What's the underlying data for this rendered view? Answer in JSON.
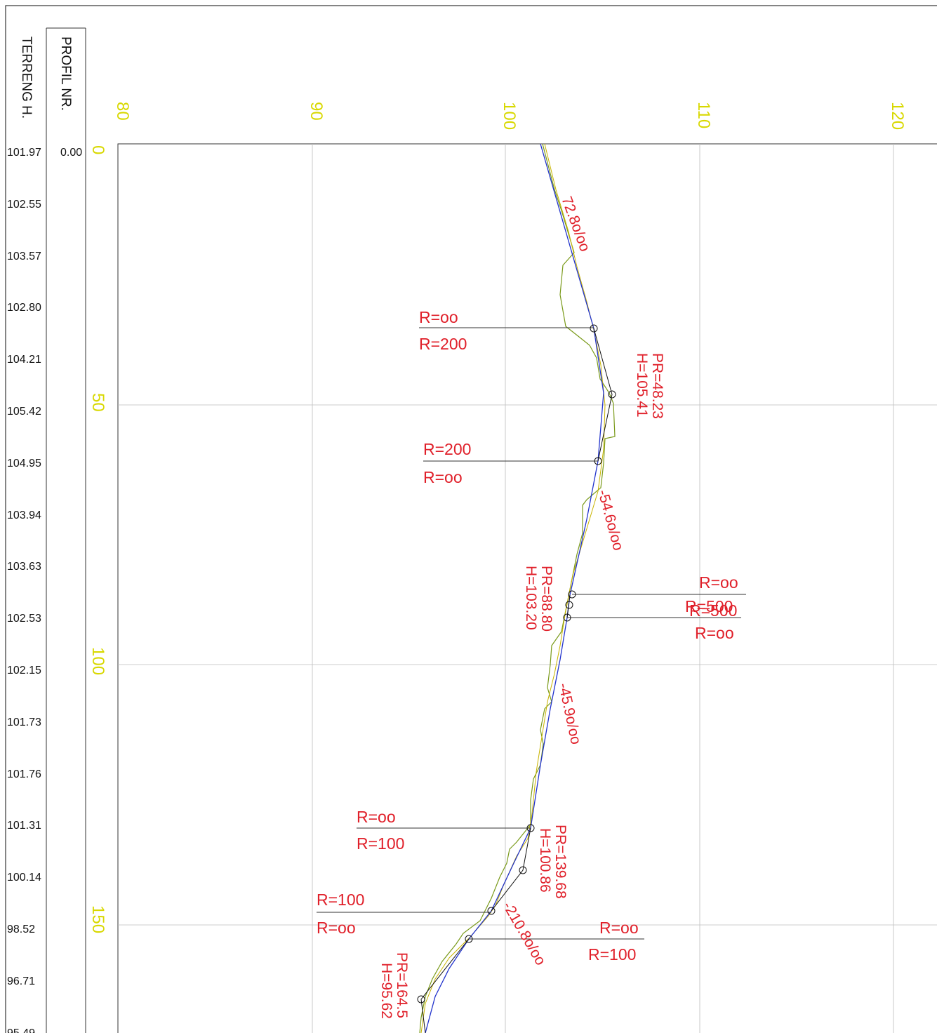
{
  "header": {
    "profil_label": "PROFIL NR.",
    "terreng_label": "TERRENG H.",
    "first_profil_value": "0.00"
  },
  "height_ticks": [
    "80",
    "90",
    "100",
    "110",
    "120"
  ],
  "station_ticks": [
    "0",
    "50",
    "100",
    "150"
  ],
  "terreng_values": [
    "101.97",
    "102.55",
    "103.57",
    "102.80",
    "104.21",
    "105.42",
    "104.95",
    "103.94",
    "103.63",
    "102.53",
    "102.15",
    "101.73",
    "101.76",
    "101.31",
    "100.14",
    "98.52",
    "96.71",
    "95.49"
  ],
  "grade_labels": [
    "72.8o/oo",
    "-54.6o/oo",
    "-45.9o/oo",
    "-210.8o/oo"
  ],
  "pvi_labels": [
    {
      "pr": "PR=48.23",
      "h": "H=105.41"
    },
    {
      "pr": "PR=88.80",
      "h": "H=103.20"
    },
    {
      "pr": "PR=139.68",
      "h": "H=100.86"
    },
    {
      "pr": "PR=164.5",
      "h": "H=95.62"
    }
  ],
  "radius_labels": [
    {
      "top": "R=oo",
      "bottom": "R=200"
    },
    {
      "top": "R=200",
      "bottom": "R=oo"
    },
    {
      "top": "R=oo",
      "bottom": "R=500"
    },
    {
      "top": "R=500",
      "bottom": "R=oo"
    },
    {
      "top": "R=oo",
      "bottom": "R=100"
    },
    {
      "top": "R=100",
      "bottom": "R=oo"
    },
    {
      "top": "R=oo",
      "bottom": "R=100"
    }
  ],
  "colors": {
    "grade_line": "#2233cc",
    "terrain_line": "#7a9a1a",
    "terrain_line_alt": "#c8b400",
    "tangent_line": "#111111",
    "label_red": "#e0202a",
    "tick_yellow": "#d8d800",
    "grid": "#bdbdbd"
  }
}
